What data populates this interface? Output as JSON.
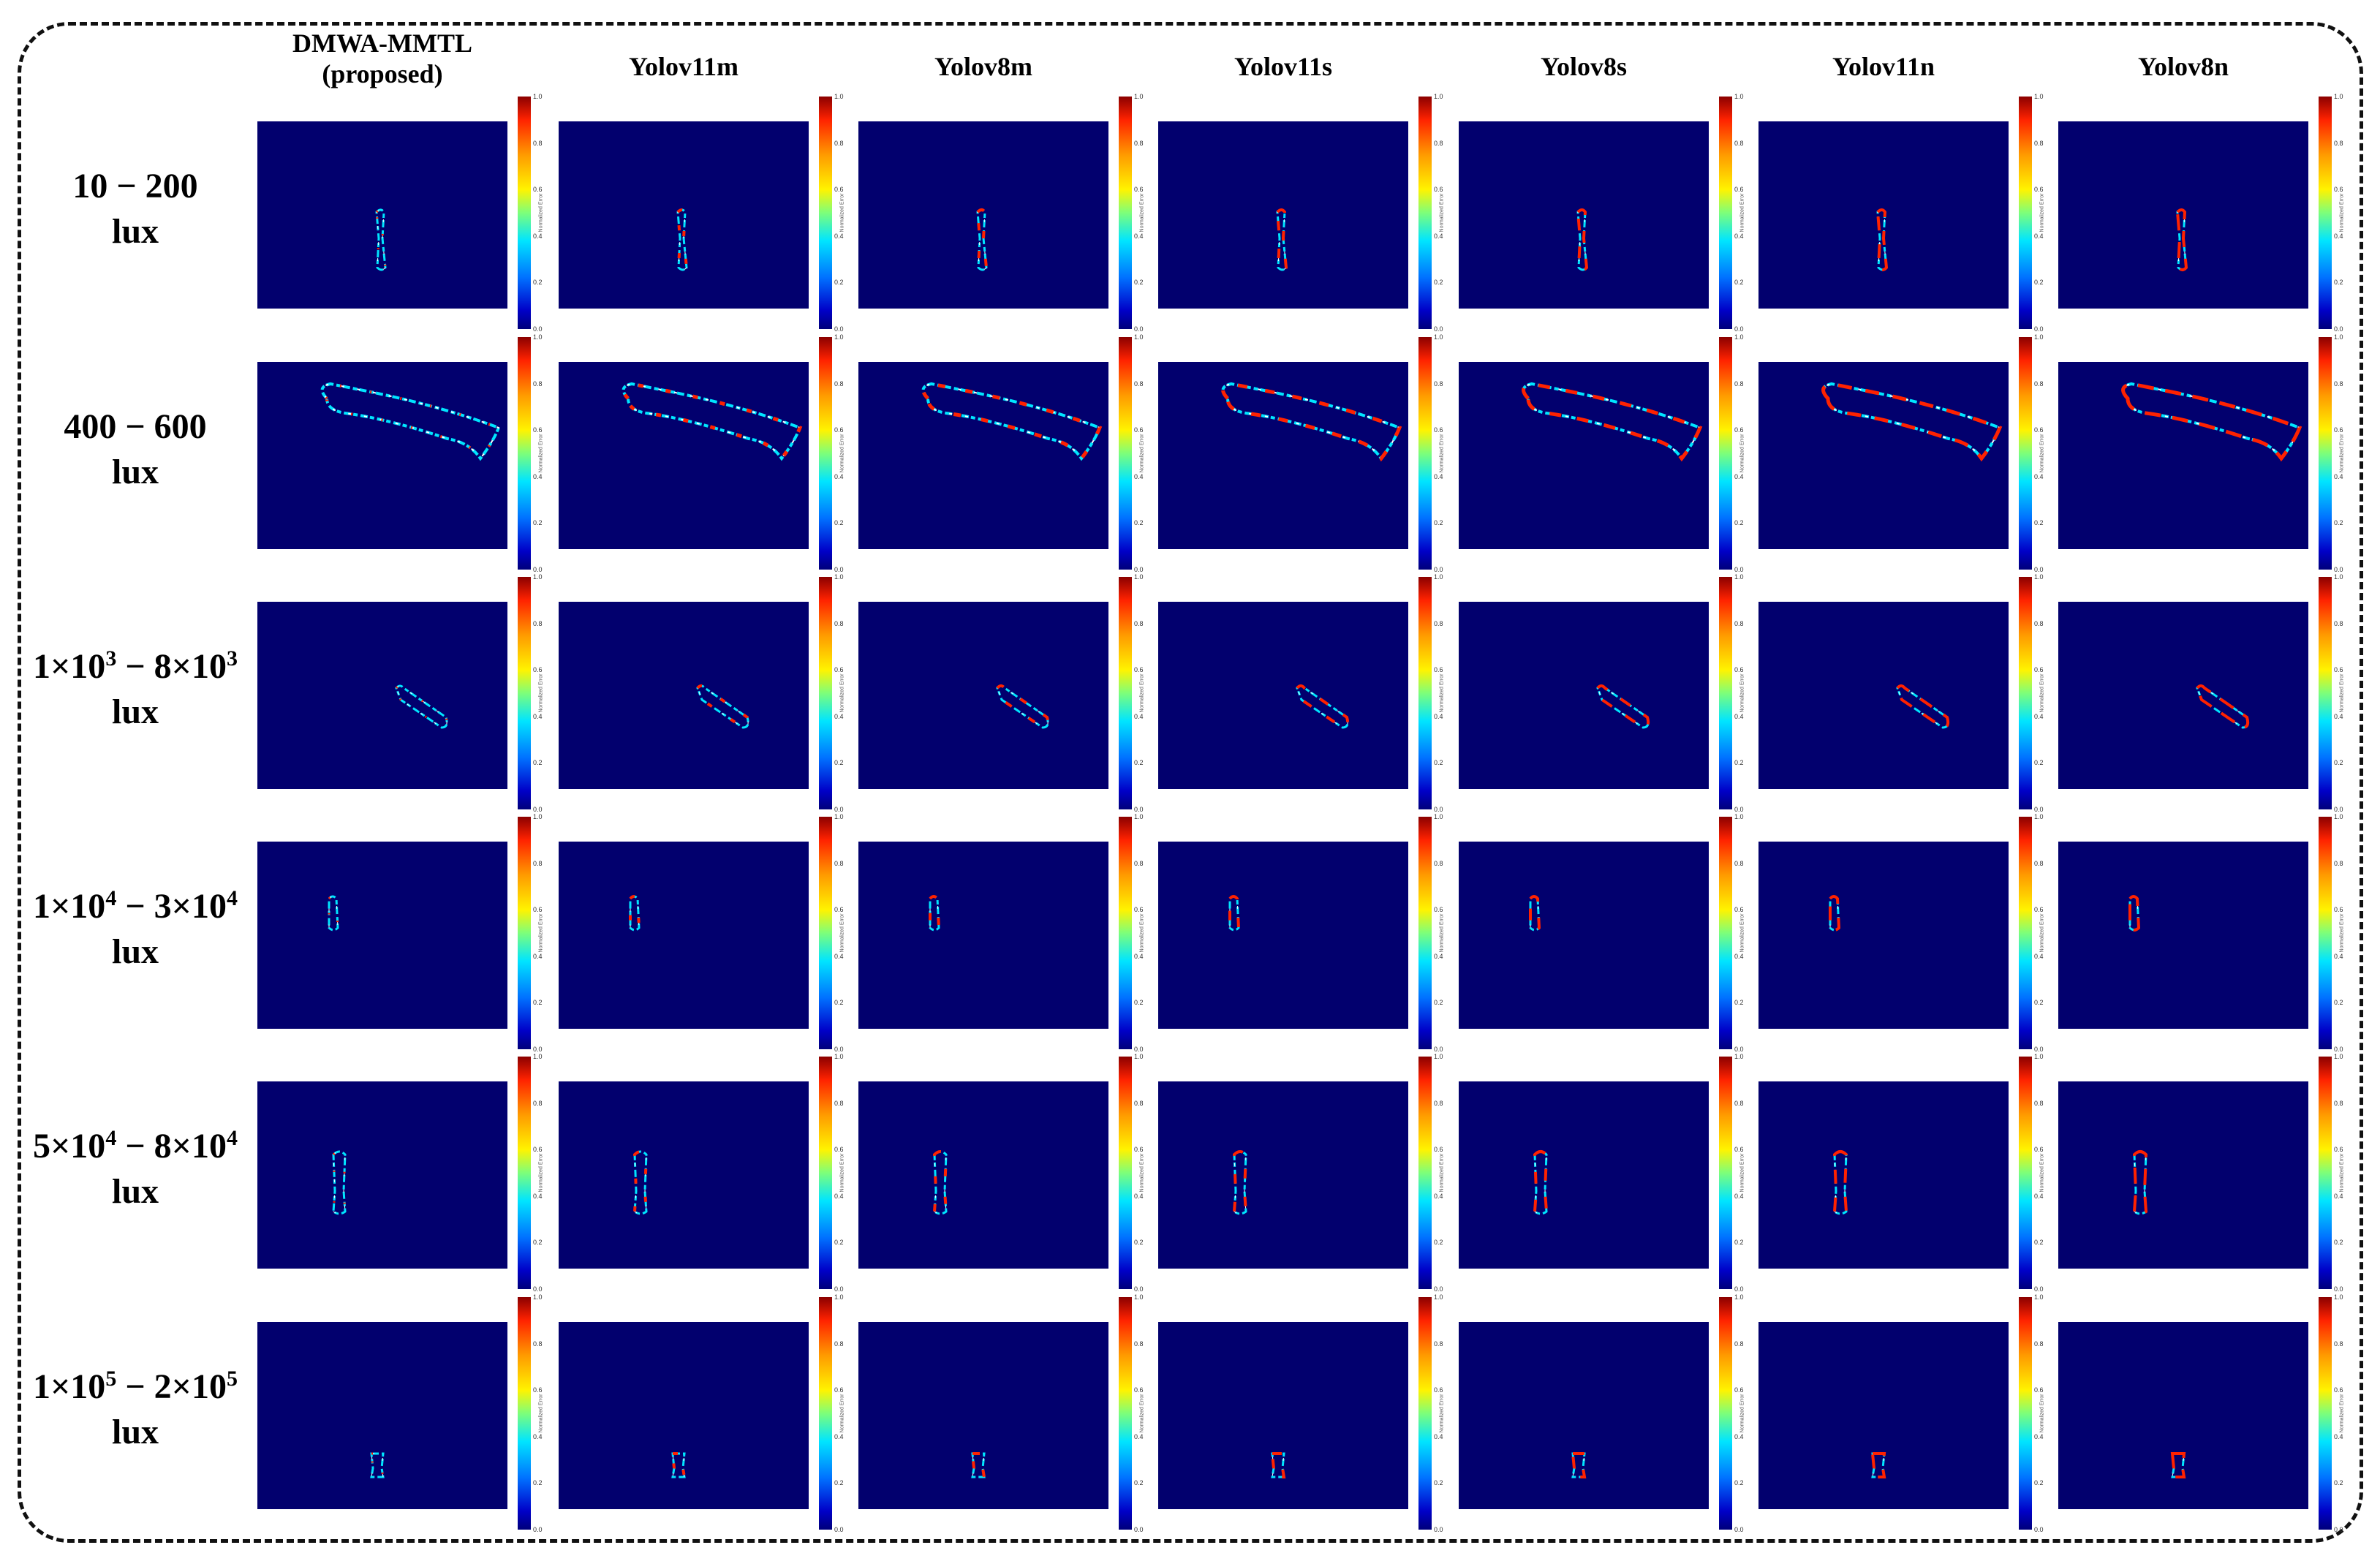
{
  "columns": [
    {
      "line1": "DMWA-MMTL",
      "line2": "(proposed)"
    },
    {
      "line1": "Yolov11m",
      "line2": ""
    },
    {
      "line1": "Yolov8m",
      "line2": ""
    },
    {
      "line1": "Yolov11s",
      "line2": ""
    },
    {
      "line1": "Yolov8s",
      "line2": ""
    },
    {
      "line1": "Yolov11n",
      "line2": ""
    },
    {
      "line1": "Yolov8n",
      "line2": ""
    }
  ],
  "rows": [
    {
      "a": "10",
      "a_exp": "",
      "b": "200",
      "b_exp": "",
      "unit": "lux",
      "shape": "vertical-small"
    },
    {
      "a": "400",
      "a_exp": "",
      "b": "600",
      "b_exp": "",
      "unit": "lux",
      "shape": "curved-long"
    },
    {
      "a": "1×10",
      "a_exp": "3",
      "b": "8×10",
      "b_exp": "3",
      "unit": "lux",
      "shape": "diagonal-small"
    },
    {
      "a": "1×10",
      "a_exp": "4",
      "b": "3×10",
      "b_exp": "4",
      "unit": "lux",
      "shape": "tiny-left"
    },
    {
      "a": "5×10",
      "a_exp": "4",
      "b": "8×10",
      "b_exp": "4",
      "unit": "lux",
      "shape": "vertical-left"
    },
    {
      "a": "1×10",
      "a_exp": "5",
      "b": "2×10",
      "b_exp": "5",
      "unit": "lux",
      "shape": "tiny-bottom"
    }
  ],
  "range_separator": " − ",
  "colorbar": {
    "ticks": [
      "1.0",
      "0.8",
      "0.6",
      "0.4",
      "0.2",
      "0.0"
    ],
    "label": "Normalized Error"
  },
  "colors": {
    "background": "#02006e",
    "low": "#0000c8",
    "mid": "#00e5ff",
    "high": "#ff2200"
  }
}
